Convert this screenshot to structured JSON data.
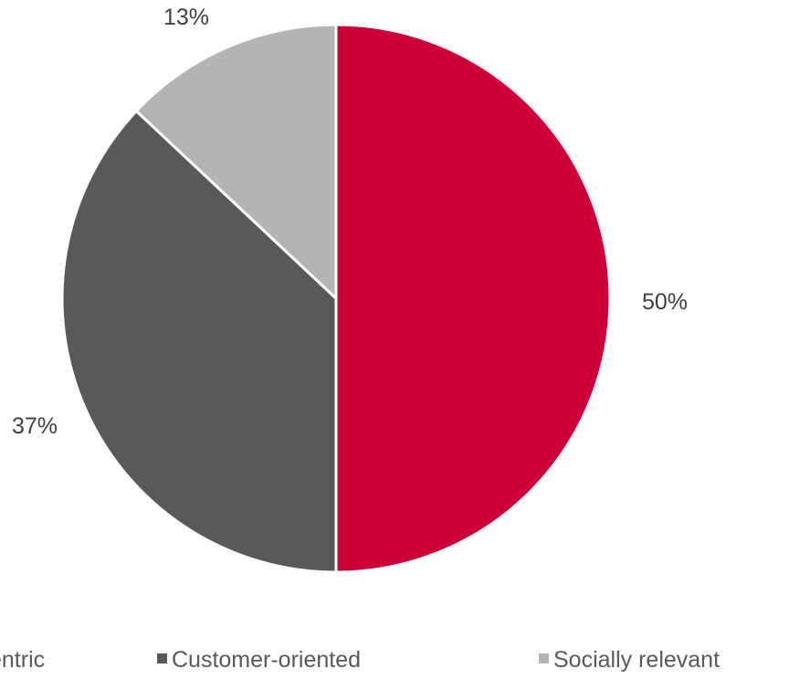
{
  "chart_data": {
    "type": "pie",
    "title": "",
    "slices": [
      {
        "name": "…entric",
        "value": 50,
        "label": "50%",
        "color": "#cc0037"
      },
      {
        "name": "Customer-oriented",
        "value": 37,
        "label": "37%",
        "color": "#595959"
      },
      {
        "name": "Socially relevant",
        "value": 13,
        "label": "13%",
        "color": "#b4b4b4"
      }
    ],
    "start_angle_deg": 0,
    "direction": "clockwise",
    "legend": {
      "position": "bottom",
      "entries": [
        {
          "text": "entric",
          "color": "#cc0037"
        },
        {
          "text": "Customer-oriented",
          "color": "#595959"
        },
        {
          "text": "Socially relevant",
          "color": "#b4b4b4"
        }
      ]
    }
  }
}
